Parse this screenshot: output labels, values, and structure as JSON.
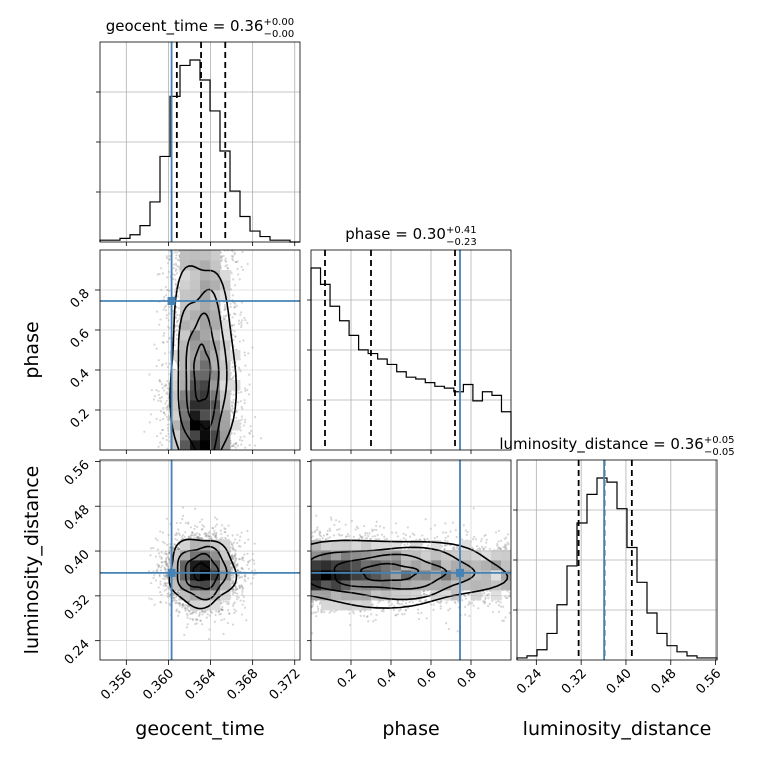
{
  "chart_data": {
    "type": "corner",
    "parameters": [
      {
        "name": "geocent_time",
        "label": "geocent_time",
        "title": {
          "prefix": "geocent_time = ",
          "value": "0.36",
          "plus": "+0.00",
          "minus": "−0.00"
        },
        "range": [
          0.3535,
          0.3725
        ],
        "ticks": [
          0.356,
          0.36,
          0.364,
          0.368,
          0.372
        ],
        "tick_labels": [
          "0.356",
          "0.360",
          "0.364",
          "0.368",
          "0.372"
        ],
        "quantiles": [
          0.3608,
          0.3631,
          0.3654
        ],
        "truth": 0.3603,
        "hist": [
          1,
          1,
          2,
          4,
          9,
          22,
          47,
          80,
          97,
          100,
          89,
          72,
          50,
          28,
          14,
          6,
          3,
          1,
          1,
          0
        ]
      },
      {
        "name": "phase",
        "label": "phase",
        "title": {
          "prefix": "phase = ",
          "value": "0.30",
          "plus": "+0.41",
          "minus": "−0.23"
        },
        "range": [
          0.0,
          1.0
        ],
        "ticks": [
          0.2,
          0.4,
          0.6,
          0.8
        ],
        "tick_labels": [
          "0.2",
          "0.4",
          "0.6",
          "0.8"
        ],
        "quantiles": [
          0.07,
          0.3,
          0.72
        ],
        "truth": 0.745,
        "hist": [
          100,
          91,
          79,
          71,
          63,
          55,
          53,
          50,
          47,
          43,
          40,
          39,
          37,
          35,
          34,
          32,
          36,
          27,
          32,
          30,
          21
        ]
      },
      {
        "name": "luminosity_distance",
        "label": "luminosity_distance",
        "title": {
          "prefix": "luminosity_distance = ",
          "value": "0.36",
          "plus": "+0.05",
          "minus": "−0.05"
        },
        "range": [
          0.2055,
          0.5625
        ],
        "ticks": [
          0.24,
          0.32,
          0.4,
          0.48,
          0.56
        ],
        "tick_labels": [
          "0.24",
          "0.32",
          "0.40",
          "0.48",
          "0.56"
        ],
        "quantiles": [
          0.3155,
          0.3615,
          0.4105
        ],
        "truth": 0.361,
        "hist": [
          1,
          2,
          5,
          13,
          27,
          46,
          67,
          81,
          89,
          87,
          74,
          55,
          38,
          23,
          13,
          7,
          4,
          2,
          1,
          1
        ]
      }
    ],
    "pairs": [
      {
        "x": "geocent_time",
        "y": "phase"
      },
      {
        "x": "geocent_time",
        "y": "luminosity_distance"
      },
      {
        "x": "phase",
        "y": "luminosity_distance"
      }
    ],
    "truth_color": "#4682b4",
    "density_color": "#000000",
    "grid": true
  }
}
